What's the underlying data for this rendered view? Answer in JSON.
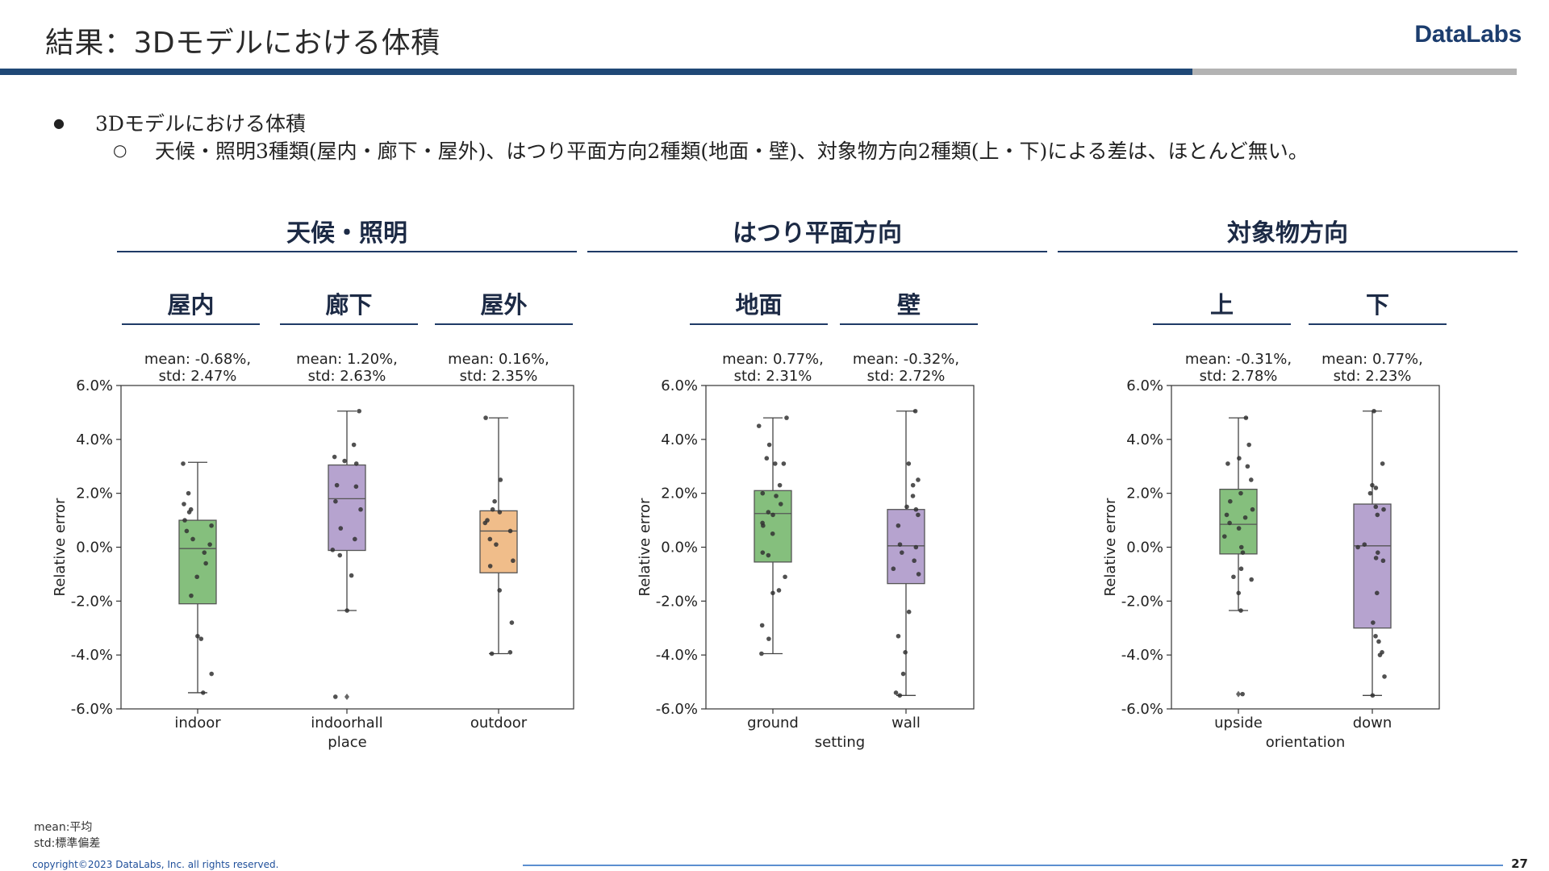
{
  "header": {
    "title": "結果：3Dモデルにおける体積",
    "logo": "DataLabs"
  },
  "bullets": {
    "level1_mark": "●",
    "level1_text": "3Dモデルにおける体積",
    "level2_mark": "○",
    "level2_text": "天候・照明3種類(屋内・廊下・屋外)、はつり平面方向2種類(地面・壁)、対象物方向2種類(上・下)による差は、ほとんど無い。"
  },
  "groups": [
    {
      "title": "天候・照明",
      "subs": [
        "屋内",
        "廊下",
        "屋外"
      ]
    },
    {
      "title": "はつり平面方向",
      "subs": [
        "地面",
        "壁"
      ]
    },
    {
      "title": "対象物方向",
      "subs": [
        "上",
        "下"
      ]
    }
  ],
  "colors": {
    "green": "#85bf7d",
    "purple": "#b6a3cf",
    "orange": "#f0bd8a",
    "title_bar": "#1f4876",
    "accent_line": "#1f3a66"
  },
  "chart_data": [
    {
      "type": "box",
      "xlabel": "place",
      "ylabel": "Relative error",
      "ylim": [
        -6,
        6
      ],
      "yticks": [
        "6.0%",
        "4.0%",
        "2.0%",
        "0.0%",
        "-2.0%",
        "-4.0%",
        "-6.0%"
      ],
      "boxes": [
        {
          "category": "indoor",
          "color": "green",
          "annotation": [
            "mean: -0.68%,",
            "std: 2.47%"
          ],
          "q1": -2.1,
          "median": -0.05,
          "q3": 1.0,
          "whisker_low": -5.4,
          "whisker_high": 3.15,
          "outliers": [],
          "points": [
            3.1,
            2.0,
            1.6,
            1.4,
            1.3,
            1.0,
            0.8,
            0.6,
            0.3,
            0.1,
            -0.2,
            -0.6,
            -1.1,
            -1.8,
            -3.3,
            -3.4,
            -4.7,
            -5.4
          ]
        },
        {
          "category": "indoorhall",
          "color": "purple",
          "annotation": [
            "mean: 1.20%,",
            "std: 2.63%"
          ],
          "q1": -0.12,
          "median": 1.8,
          "q3": 3.05,
          "whisker_low": -2.35,
          "whisker_high": 5.05,
          "outliers": [
            -5.55
          ],
          "points": [
            5.05,
            3.8,
            3.35,
            3.2,
            3.1,
            2.3,
            2.25,
            1.7,
            1.4,
            0.7,
            0.3,
            -0.1,
            -0.3,
            -1.05,
            -2.35,
            -5.55
          ]
        },
        {
          "category": "outdoor",
          "color": "orange",
          "annotation": [
            "mean: 0.16%,",
            "std: 2.35%"
          ],
          "q1": -0.95,
          "median": 0.6,
          "q3": 1.35,
          "whisker_low": -3.95,
          "whisker_high": 4.8,
          "outliers": [],
          "points": [
            4.8,
            2.5,
            1.7,
            1.4,
            1.3,
            1.0,
            0.9,
            0.6,
            0.3,
            0.1,
            -0.5,
            -0.7,
            -1.6,
            -2.8,
            -3.9,
            -3.95
          ]
        }
      ]
    },
    {
      "type": "box",
      "xlabel": "setting",
      "ylabel": "Relative error",
      "ylim": [
        -6,
        6
      ],
      "yticks": [
        "6.0%",
        "4.0%",
        "2.0%",
        "0.0%",
        "-2.0%",
        "-4.0%",
        "-6.0%"
      ],
      "boxes": [
        {
          "category": "ground",
          "color": "green",
          "annotation": [
            "mean: 0.77%,",
            "std: 2.31%"
          ],
          "q1": -0.55,
          "median": 1.25,
          "q3": 2.1,
          "whisker_low": -3.95,
          "whisker_high": 4.8,
          "outliers": [],
          "points": [
            4.8,
            4.5,
            3.8,
            3.3,
            3.1,
            3.1,
            2.3,
            2.0,
            1.9,
            1.6,
            1.3,
            1.2,
            0.9,
            0.8,
            0.5,
            -0.2,
            -0.3,
            -1.1,
            -1.6,
            -1.7,
            -2.9,
            -3.4,
            -3.95
          ]
        },
        {
          "category": "wall",
          "color": "purple",
          "annotation": [
            "mean: -0.32%,",
            "std: 2.72%"
          ],
          "q1": -1.35,
          "median": 0.05,
          "q3": 1.4,
          "whisker_low": -5.5,
          "whisker_high": 5.05,
          "outliers": [],
          "points": [
            5.05,
            3.1,
            2.5,
            2.3,
            1.9,
            1.5,
            1.4,
            1.2,
            0.8,
            0.1,
            0.0,
            -0.2,
            -0.5,
            -0.8,
            -1.0,
            -2.4,
            -3.3,
            -3.9,
            -4.7,
            -5.4,
            -5.5
          ]
        }
      ]
    },
    {
      "type": "box",
      "xlabel": "orientation",
      "ylabel": "Relative error",
      "ylim": [
        -6,
        6
      ],
      "yticks": [
        "6.0%",
        "4.0%",
        "2.0%",
        "0.0%",
        "-2.0%",
        "-4.0%",
        "-6.0%"
      ],
      "boxes": [
        {
          "category": "upside",
          "color": "green",
          "annotation": [
            "mean: -0.31%,",
            "std: 2.78%"
          ],
          "q1": -0.25,
          "median": 0.85,
          "q3": 2.15,
          "whisker_low": -2.35,
          "whisker_high": 4.8,
          "outliers": [
            -5.45
          ],
          "points": [
            4.8,
            3.8,
            3.3,
            3.1,
            3.0,
            2.5,
            2.0,
            1.7,
            1.4,
            1.2,
            1.1,
            0.9,
            0.7,
            0.4,
            0.0,
            -0.2,
            -0.8,
            -1.1,
            -1.2,
            -1.7,
            -2.35,
            -5.45
          ]
        },
        {
          "category": "down",
          "color": "purple",
          "annotation": [
            "mean: 0.77%,",
            "std: 2.23%"
          ],
          "q1": -3.0,
          "median": 0.05,
          "q3": 1.6,
          "whisker_low": -5.5,
          "whisker_high": 5.05,
          "outliers": [],
          "points": [
            5.05,
            3.1,
            2.3,
            2.2,
            2.0,
            1.5,
            1.4,
            1.2,
            0.1,
            0.0,
            -0.2,
            -0.4,
            -0.5,
            -1.7,
            -2.8,
            -3.3,
            -3.5,
            -3.9,
            -4.0,
            -4.8,
            -5.5
          ]
        }
      ]
    }
  ],
  "footnotes": {
    "mean": "mean:平均",
    "std": "std:標準偏差"
  },
  "footer": {
    "copyright": "copyright©2023 DataLabs, Inc. all rights reserved.",
    "page": "27"
  }
}
